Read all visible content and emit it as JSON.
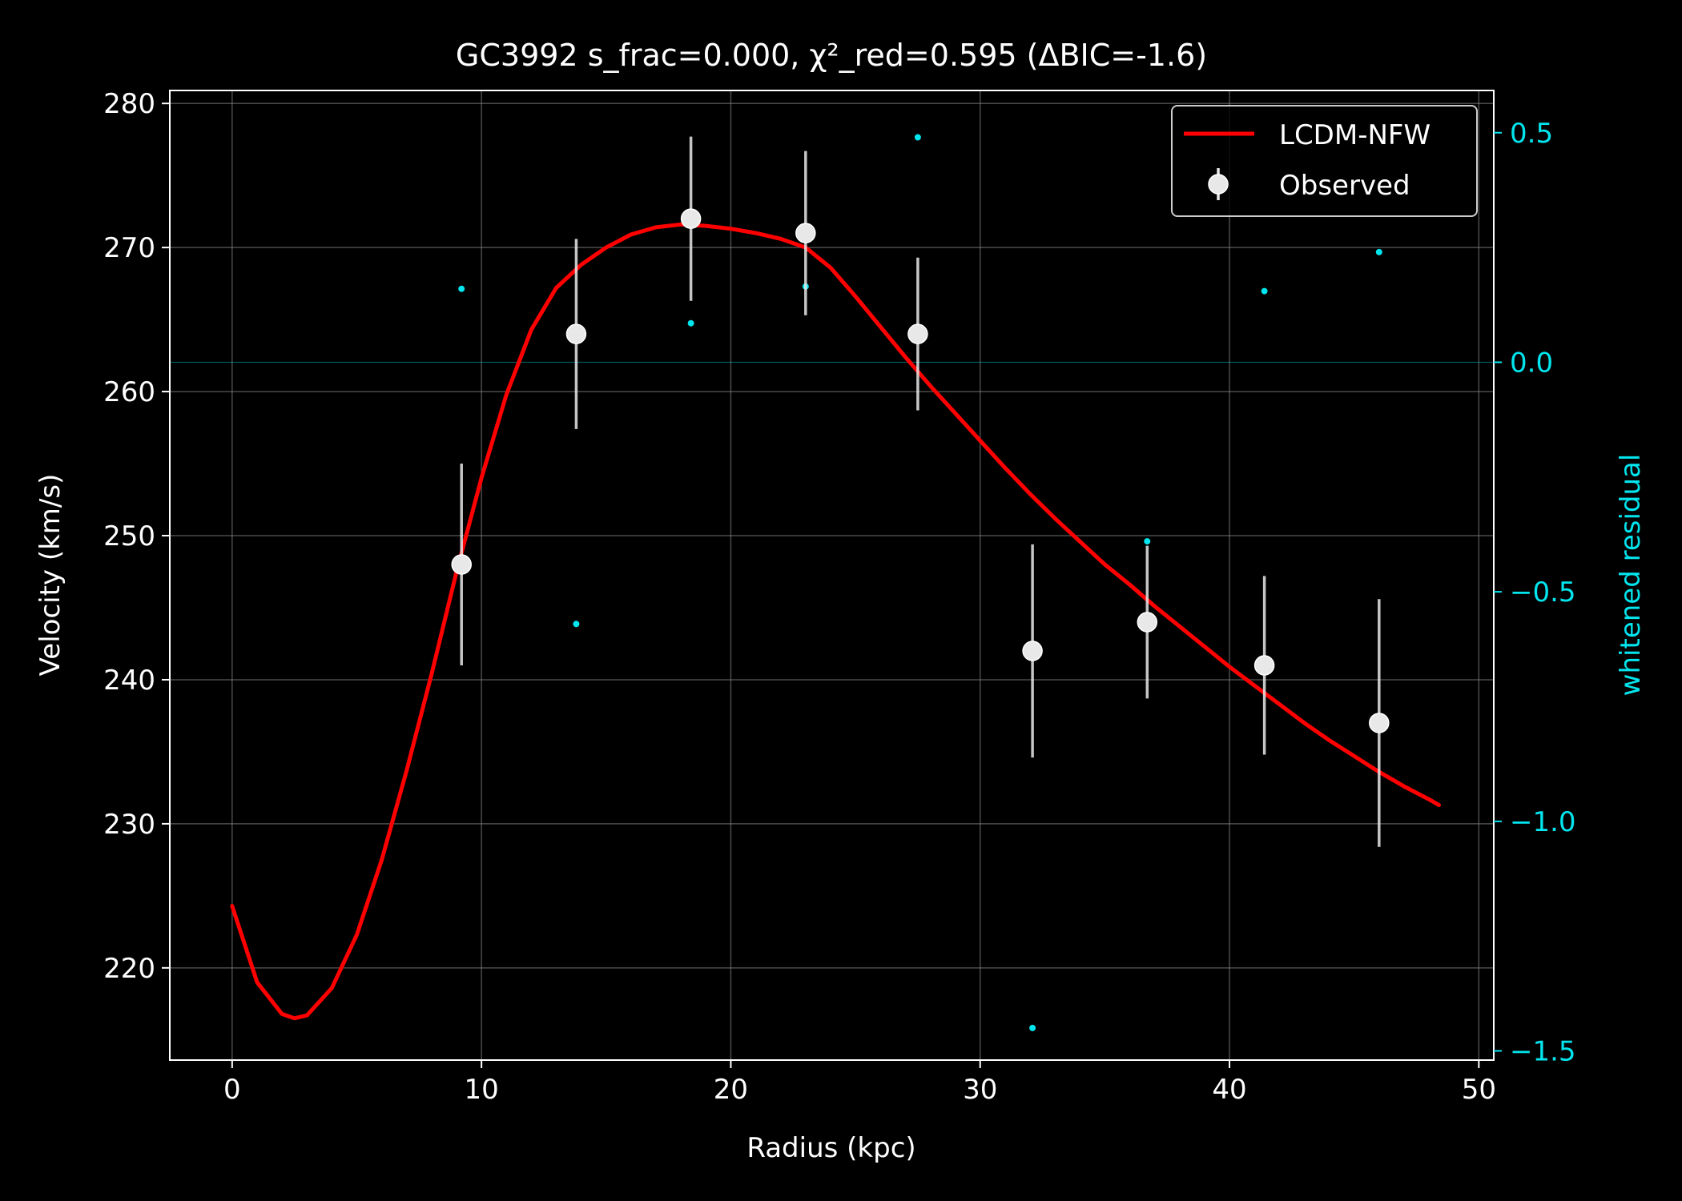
{
  "chart_data": {
    "type": "line",
    "title": "GC3992  s_frac=0.000, χ²_red=0.595  (ΔBIC=-1.6)",
    "xlabel": "Radius (kpc)",
    "ylabel": "Velocity (km/s)",
    "y2label": "whitened residual",
    "xlim": [
      -2.5,
      50.6
    ],
    "ylim": [
      213.6,
      280.9
    ],
    "y2lim": [
      -1.52,
      0.592
    ],
    "xticks": [
      0,
      10,
      20,
      30,
      40,
      50
    ],
    "yticks": [
      220,
      230,
      240,
      250,
      260,
      270,
      280
    ],
    "y2ticks": [
      -1.5,
      -1.0,
      -0.5,
      0.0,
      0.5
    ],
    "y2ticklabels": [
      "−1.5",
      "−1.0",
      "−0.5",
      "0.0",
      "0.5"
    ],
    "grid": true,
    "legend": {
      "position": "top-right",
      "entries": [
        "LCDM-NFW",
        "Observed"
      ]
    },
    "colors": {
      "background": "#000000",
      "model": "#ff0000",
      "observed": "#e8e8e8",
      "residual": "#00e5ee",
      "axes": "#ffffff",
      "grid": "#888888"
    },
    "series": [
      {
        "name": "LCDM-NFW",
        "kind": "line",
        "x": [
          0,
          1,
          2,
          2.5,
          3,
          4,
          5,
          6,
          7,
          8,
          9,
          10,
          11,
          12,
          13,
          14,
          15,
          16,
          17,
          18,
          19,
          20,
          21,
          22,
          23,
          24,
          25,
          26,
          27,
          28,
          29,
          30,
          31,
          32,
          33,
          34,
          35,
          36,
          37,
          38,
          39,
          40,
          41,
          42,
          43,
          44,
          45,
          46,
          47,
          48,
          48.4
        ],
        "y": [
          224.3,
          219.0,
          216.8,
          216.5,
          216.7,
          218.6,
          222.3,
          227.5,
          233.7,
          240.4,
          247.5,
          254.0,
          259.8,
          264.3,
          267.2,
          268.8,
          270.0,
          270.9,
          271.4,
          271.6,
          271.5,
          271.3,
          271.0,
          270.6,
          270.0,
          268.6,
          266.6,
          264.5,
          262.4,
          260.4,
          258.5,
          256.6,
          254.7,
          252.9,
          251.2,
          249.6,
          248.0,
          246.6,
          245.1,
          243.7,
          242.3,
          240.9,
          239.6,
          238.3,
          237.0,
          235.8,
          234.7,
          233.6,
          232.6,
          231.7,
          231.3
        ]
      },
      {
        "name": "Observed",
        "kind": "errorbar",
        "x": [
          9.2,
          13.8,
          18.4,
          23.0,
          27.5,
          32.1,
          36.7,
          41.4,
          46.0
        ],
        "y": [
          248.0,
          264.0,
          272.0,
          271.0,
          264.0,
          242.0,
          244.0,
          241.0,
          237.0
        ],
        "err": [
          7.0,
          6.6,
          5.7,
          5.7,
          5.3,
          7.4,
          5.3,
          6.2,
          8.6
        ]
      },
      {
        "name": "",
        "kind": "scatter",
        "axis": "right",
        "x": [
          9.2,
          13.8,
          18.4,
          23.0,
          27.5,
          32.1,
          36.7,
          41.4,
          46.0
        ],
        "y": [
          0.16,
          -0.57,
          0.085,
          0.165,
          0.49,
          -1.45,
          -0.39,
          0.155,
          0.24
        ]
      }
    ],
    "reference_lines": [
      {
        "axis": "right",
        "y": 0.0
      }
    ]
  }
}
